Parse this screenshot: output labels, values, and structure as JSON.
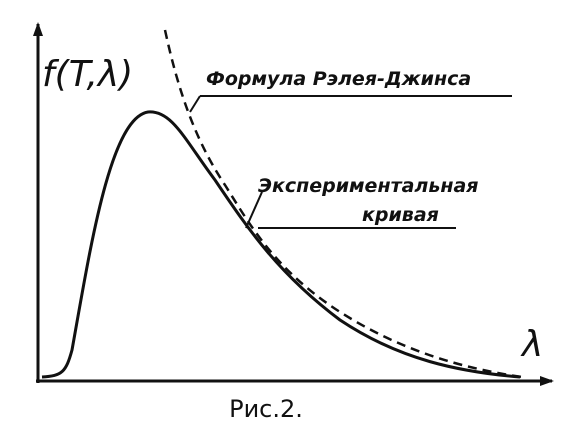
{
  "axes": {
    "y_label": "f(T,λ)",
    "x_label": "λ"
  },
  "labels": {
    "rayleigh_jeans": "Формула Рэлея-Джинса",
    "experimental_line1": "Экспериментальная",
    "experimental_line2": "кривая"
  },
  "caption": "Рис.2."
}
